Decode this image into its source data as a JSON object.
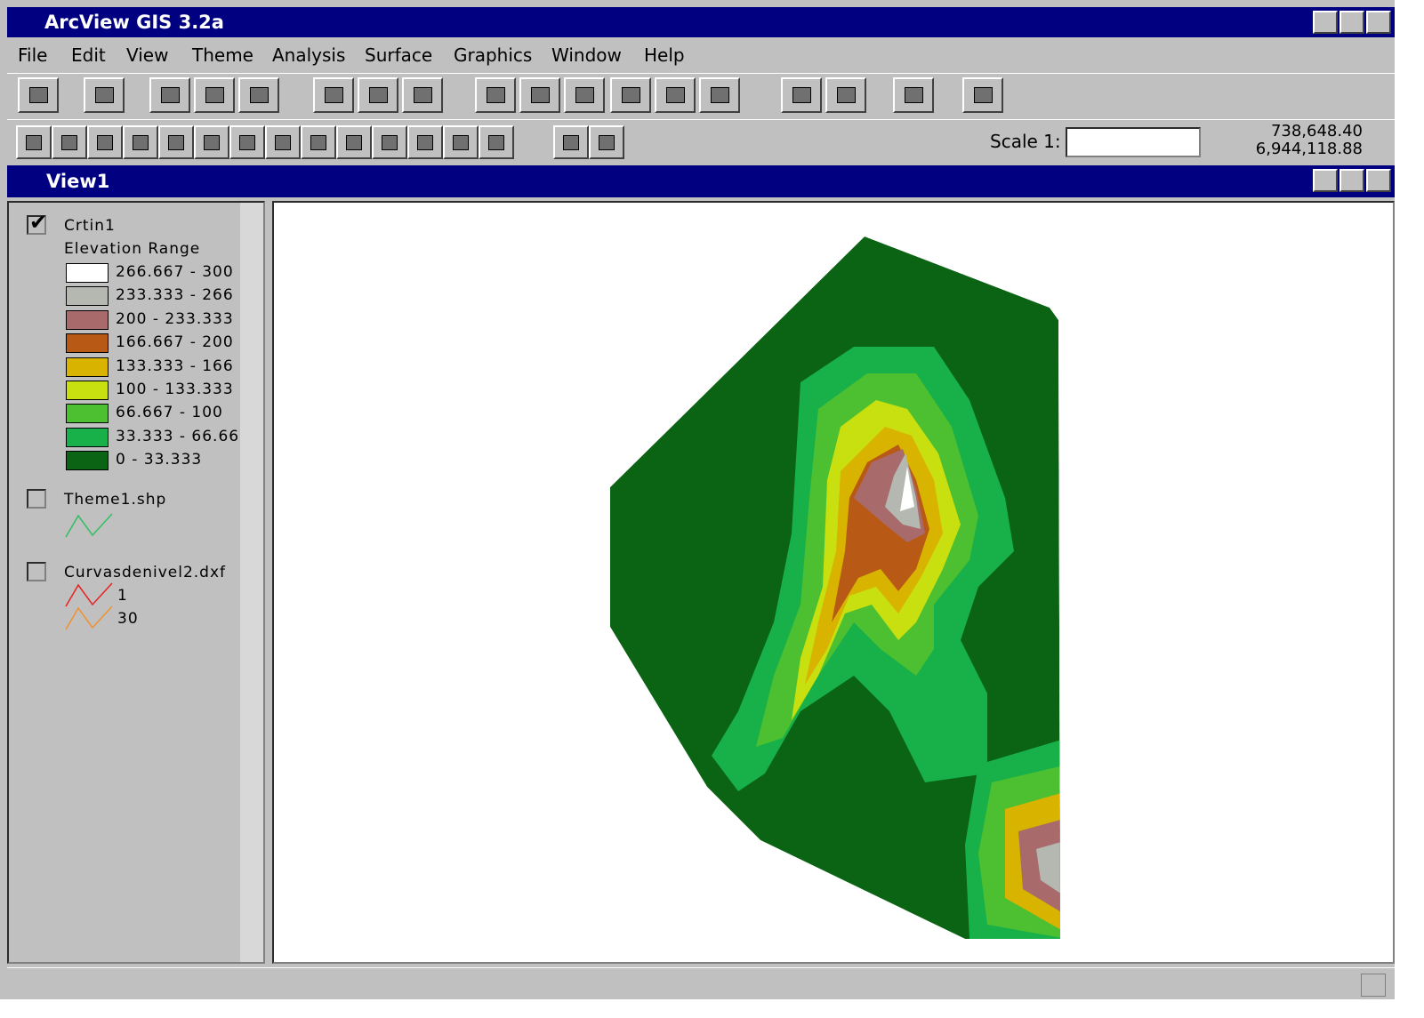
{
  "window": {
    "title": "ArcView GIS 3.2a"
  },
  "menu": [
    "File",
    "Edit",
    "View",
    "Theme",
    "Analysis",
    "Surface",
    "Graphics",
    "Window",
    "Help"
  ],
  "toolbar": {
    "scale_label": "Scale 1:",
    "coord_x": "738,648.40",
    "coord_y": "6,944,118.88"
  },
  "view": {
    "title": "View1"
  },
  "legend": {
    "themes": [
      {
        "name": "Crtin1",
        "checked": true,
        "subtitle": "Elevation Range",
        "classes": [
          {
            "label": "266.667 - 300",
            "color": "#ffffff"
          },
          {
            "label": "233.333 - 266",
            "color": "#b4b8b0"
          },
          {
            "label": "200 - 233.333",
            "color": "#a86a6a"
          },
          {
            "label": "166.667 - 200",
            "color": "#b85a16"
          },
          {
            "label": "133.333 - 166",
            "color": "#d8b400"
          },
          {
            "label": "100 - 133.333",
            "color": "#c8e010"
          },
          {
            "label": "66.667 - 100",
            "color": "#4cc030"
          },
          {
            "label": "33.333 - 66.66",
            "color": "#18b048"
          },
          {
            "label": "0 - 33.333",
            "color": "#0a6414"
          }
        ]
      },
      {
        "name": "Theme1.shp",
        "checked": false
      },
      {
        "name": "Curvasdenivel2.dxf",
        "checked": false,
        "classes": [
          {
            "label": "1",
            "color": "#e82020"
          },
          {
            "label": "30",
            "color": "#f09030"
          }
        ]
      }
    ]
  }
}
